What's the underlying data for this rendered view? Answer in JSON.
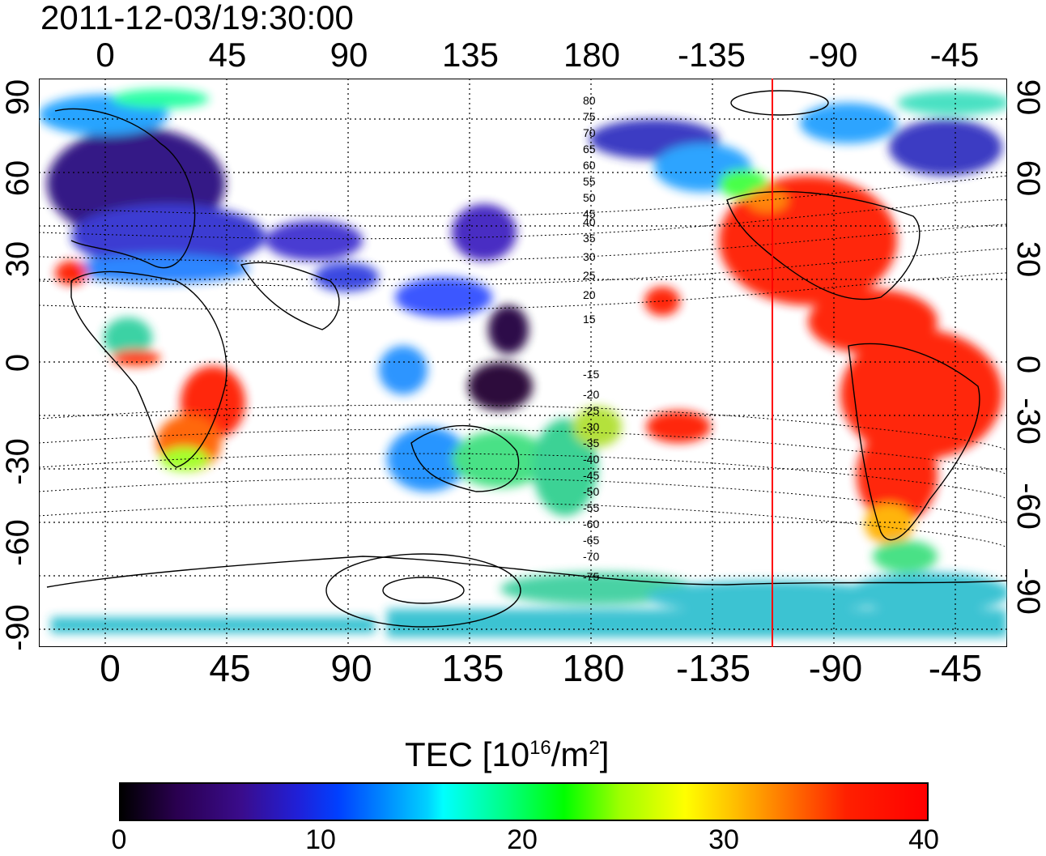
{
  "title": "2011-12-03/19:30:00",
  "x_ticks": [
    "0",
    "45",
    "90",
    "135",
    "180",
    "-135",
    "-90",
    "-45"
  ],
  "y_ticks_left": [
    "90",
    "60",
    "30",
    "0",
    "-30",
    "-60",
    "-90"
  ],
  "y_ticks_right": [
    "90",
    "60",
    "30",
    "0",
    "-30",
    "-60",
    "-90"
  ],
  "contour_labels": [
    "80",
    "75",
    "70",
    "65",
    "60",
    "55",
    "50",
    "45",
    "40",
    "35",
    "30",
    "25",
    "20",
    "15",
    "-15",
    "-20",
    "-25",
    "-30",
    "-35",
    "-40",
    "-45",
    "-50",
    "-55",
    "-60",
    "-65",
    "-70",
    "-75"
  ],
  "colorbar": {
    "label": "TEC",
    "unit": "[10",
    "unit_exp": "16",
    "unit_mid": "/m",
    "unit_exp2": "2",
    "unit_end": "]",
    "ticks": [
      "0",
      "10",
      "20",
      "30",
      "40"
    ],
    "min": 0,
    "max": 40
  },
  "map": {
    "lon_range": [
      -20,
      330
    ],
    "lat_range": [
      -90,
      90
    ],
    "terminator_lon": -112,
    "colors": {
      "land_outline": "#000000",
      "grid": "#000000",
      "terminator": "#ff0000"
    }
  }
}
